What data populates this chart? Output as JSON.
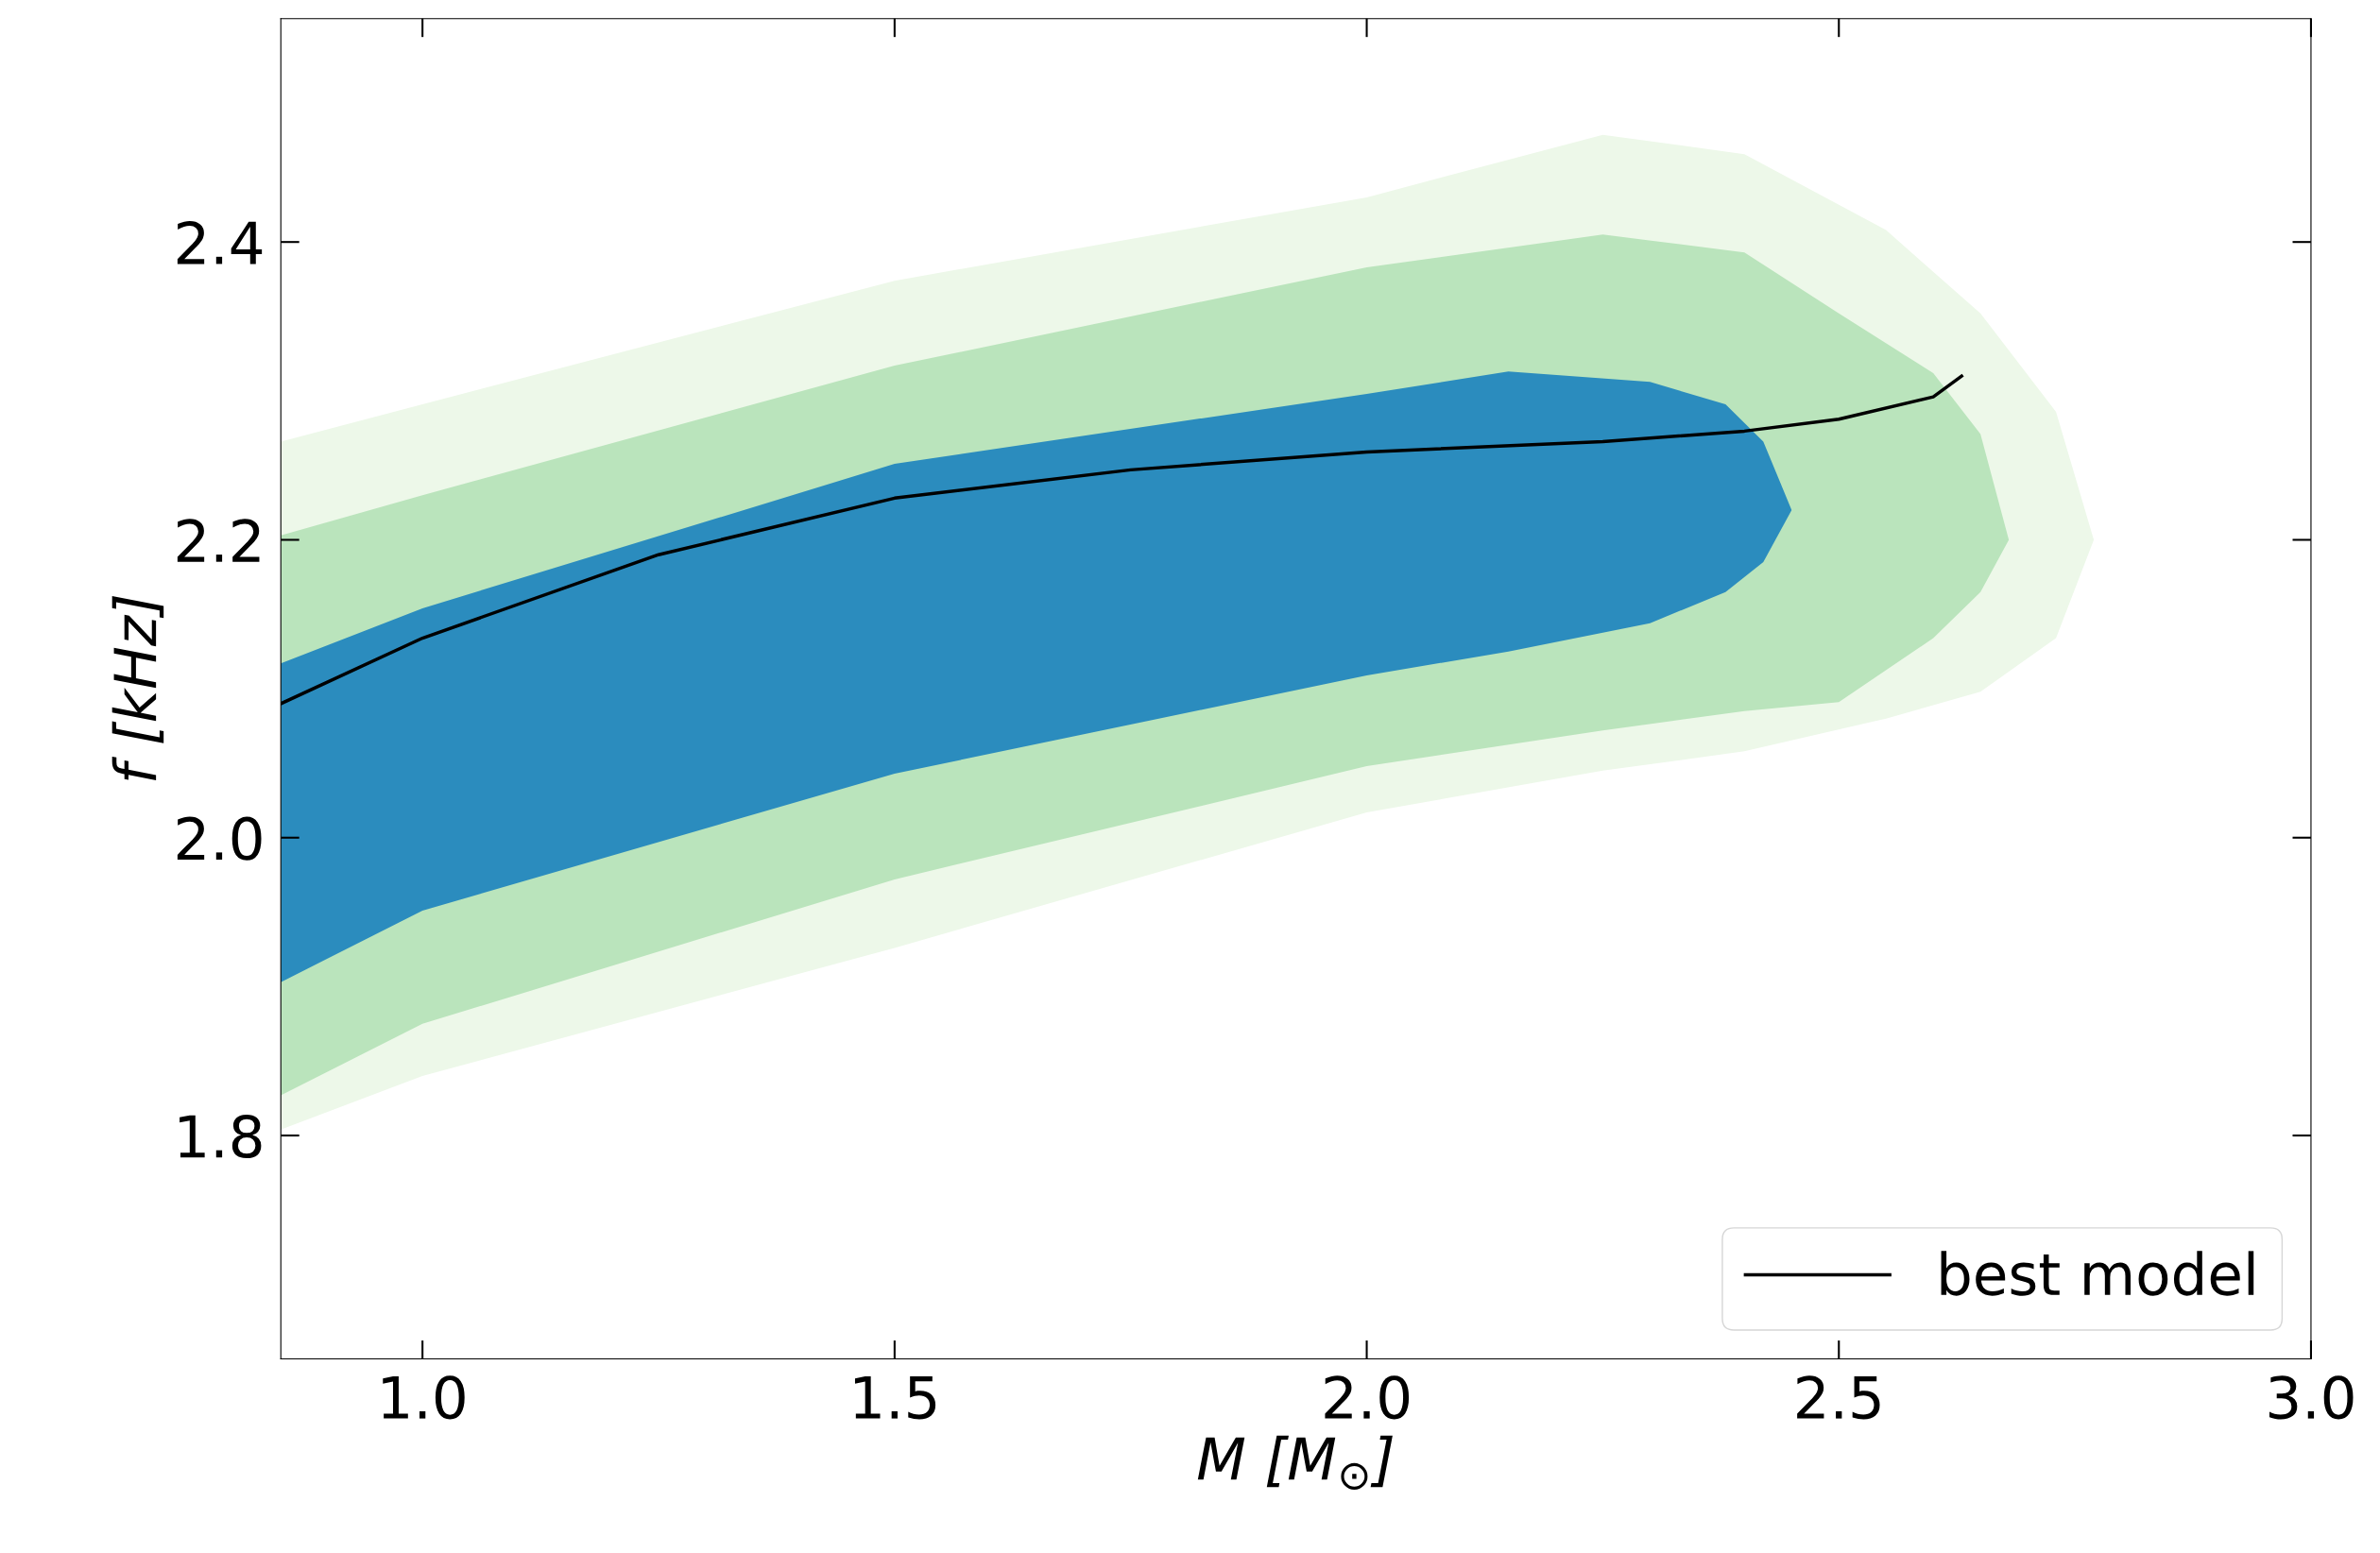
{
  "chart_data": {
    "type": "line",
    "xlabel": "M [M$_{⊙}$]",
    "ylabel": "f [kHz]",
    "xlim": [
      0.85,
      3.0
    ],
    "ylim": [
      1.65,
      2.55
    ],
    "xticks": [
      {
        "value": 1.0,
        "label": "1.0"
      },
      {
        "value": 1.5,
        "label": "1.5"
      },
      {
        "value": 2.0,
        "label": "2.0"
      },
      {
        "value": 2.5,
        "label": "2.5"
      },
      {
        "value": 3.0,
        "label": "3.0"
      }
    ],
    "yticks": [
      {
        "value": 1.8,
        "label": "1.8"
      },
      {
        "value": 2.0,
        "label": "2.0"
      },
      {
        "value": 2.2,
        "label": "2.2"
      },
      {
        "value": 2.4,
        "label": "2.4"
      }
    ],
    "legend": "bottom right",
    "series": [
      {
        "color": "#edf8e9",
        "x": [
          0.85,
          1.0,
          1.5,
          2.0,
          2.25,
          2.4,
          2.55,
          2.65,
          2.73,
          2.77
        ],
        "values": [
          null,
          null,
          null,
          null,
          null,
          null,
          null,
          null,
          null,
          null
        ],
        "upper": [
          2.266,
          2.291,
          2.374,
          2.43,
          2.472,
          2.459,
          2.408,
          2.352,
          2.286,
          2.2
        ],
        "lower": [
          1.804,
          1.84,
          1.926,
          2.017,
          2.045,
          2.058,
          2.08,
          2.098,
          2.134,
          2.2
        ]
      },
      {
        "color": "#bae4bc",
        "x": [
          0.85,
          1.0,
          1.5,
          2.0,
          2.25,
          2.4,
          2.5,
          2.6,
          2.65,
          2.68
        ],
        "values": [
          null,
          null,
          null,
          null,
          null,
          null,
          null,
          null,
          null,
          null
        ],
        "upper": [
          2.203,
          2.23,
          2.317,
          2.383,
          2.405,
          2.393,
          2.352,
          2.312,
          2.271,
          2.2
        ],
        "lower": [
          1.827,
          1.875,
          1.972,
          2.048,
          2.072,
          2.085,
          2.091,
          2.134,
          2.165,
          2.2
        ]
      },
      {
        "color": "#2b8cbe",
        "x": [
          0.85,
          1.0,
          1.5,
          2.0,
          2.15,
          2.3,
          2.38,
          2.42,
          2.45
        ],
        "values": [
          null,
          null,
          null,
          null,
          null,
          null,
          null,
          null,
          null
        ],
        "upper": [
          2.117,
          2.154,
          2.251,
          2.298,
          2.313,
          2.306,
          2.291,
          2.266,
          2.22
        ],
        "lower": [
          1.903,
          1.951,
          2.043,
          2.109,
          2.125,
          2.144,
          2.165,
          2.185,
          2.22
        ]
      },
      {
        "type": "line",
        "name": "best model",
        "color": "#000000",
        "x": [
          0.85,
          1.0,
          1.25,
          1.5,
          1.75,
          2.0,
          2.25,
          2.4,
          2.5,
          2.6,
          2.63
        ],
        "values": [
          2.09,
          2.134,
          2.19,
          2.228,
          2.247,
          2.259,
          2.266,
          2.273,
          2.281,
          2.296,
          2.31
        ]
      }
    ]
  }
}
